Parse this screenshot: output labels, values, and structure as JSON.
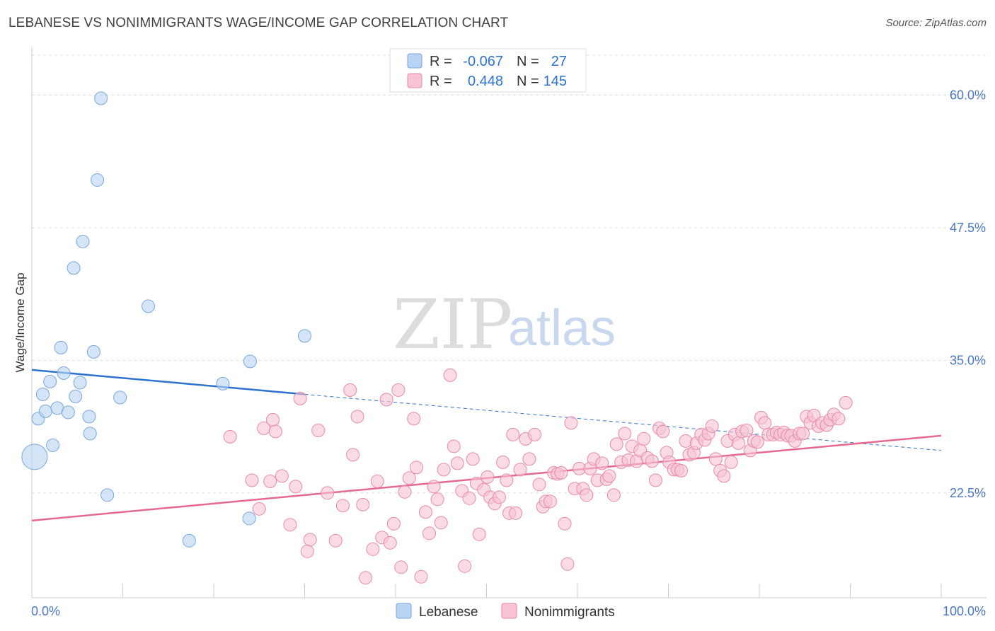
{
  "title": "LEBANESE VS NONIMMIGRANTS WAGE/INCOME GAP CORRELATION CHART",
  "source": "Source: ZipAtlas.com",
  "watermark": {
    "zip": "ZIP",
    "atlas": "atlas"
  },
  "colors": {
    "lebanese_fill": "#b9d3f3",
    "lebanese_stroke": "#7aa6dc",
    "lebanese_line": "#2e72cf",
    "nonimm_fill": "#f7c3d4",
    "nonimm_stroke": "#e88aa8",
    "nonimm_line": "#e5698f",
    "tick_text": "#4a78c4",
    "grid": "#dddddd"
  },
  "legend": {
    "rows": [
      {
        "r_label": "R =",
        "r_value": "-0.067",
        "n_label": "N =",
        "n_value": "27"
      },
      {
        "r_label": "R =",
        "r_value": "0.448",
        "n_label": "N =",
        "n_value": "145"
      }
    ]
  },
  "bottom_legend": [
    "Lebanese",
    "Nonimmigrants"
  ],
  "chart_data": {
    "type": "scatter",
    "title": "LEBANESE VS NONIMMIGRANTS WAGE/INCOME GAP CORRELATION CHART",
    "xlabel": "",
    "ylabel": "Wage/Income Gap",
    "xlim": [
      0,
      100
    ],
    "ylim": [
      12,
      63
    ],
    "x_tick_labels": [
      "0.0%",
      "100.0%"
    ],
    "y_ticks": [
      22.5,
      35.0,
      47.5,
      60.0
    ],
    "y_tick_labels": [
      "22.5%",
      "35.0%",
      "47.5%",
      "60.0%"
    ],
    "grid": "horizontal dashed",
    "legend_position": "top-center",
    "series": [
      {
        "name": "Lebanese",
        "R": -0.067,
        "N": 27,
        "trend": {
          "x": [
            0,
            30
          ],
          "y": [
            34.1,
            31.8
          ],
          "dashed_to": [
            100,
            26.5
          ]
        },
        "points": [
          {
            "x": 0.3,
            "y": 25.9,
            "big": true
          },
          {
            "x": 0.7,
            "y": 29.5
          },
          {
            "x": 1.2,
            "y": 31.8
          },
          {
            "x": 1.5,
            "y": 30.2
          },
          {
            "x": 2.0,
            "y": 33.0
          },
          {
            "x": 2.3,
            "y": 27.0
          },
          {
            "x": 2.8,
            "y": 30.5
          },
          {
            "x": 3.2,
            "y": 36.2
          },
          {
            "x": 3.5,
            "y": 33.8
          },
          {
            "x": 4.0,
            "y": 30.1
          },
          {
            "x": 4.6,
            "y": 43.7
          },
          {
            "x": 4.8,
            "y": 31.6
          },
          {
            "x": 5.3,
            "y": 32.9
          },
          {
            "x": 5.6,
            "y": 46.2
          },
          {
            "x": 6.3,
            "y": 29.7
          },
          {
            "x": 6.4,
            "y": 28.1
          },
          {
            "x": 6.8,
            "y": 35.8
          },
          {
            "x": 7.2,
            "y": 52.0
          },
          {
            "x": 7.6,
            "y": 59.7
          },
          {
            "x": 8.3,
            "y": 22.3
          },
          {
            "x": 9.7,
            "y": 31.5
          },
          {
            "x": 12.8,
            "y": 40.1
          },
          {
            "x": 17.3,
            "y": 18.0
          },
          {
            "x": 21.0,
            "y": 32.8
          },
          {
            "x": 23.9,
            "y": 20.1
          },
          {
            "x": 24.0,
            "y": 34.9
          },
          {
            "x": 30.0,
            "y": 37.3
          }
        ]
      },
      {
        "name": "Nonimmigrants",
        "R": 0.448,
        "N": 145,
        "trend": {
          "x": [
            0,
            100
          ],
          "y": [
            19.9,
            27.9
          ]
        },
        "points": [
          {
            "x": 21.8,
            "y": 27.8
          },
          {
            "x": 24.2,
            "y": 23.7
          },
          {
            "x": 25.0,
            "y": 21.0
          },
          {
            "x": 25.5,
            "y": 28.6
          },
          {
            "x": 26.2,
            "y": 23.6
          },
          {
            "x": 26.5,
            "y": 29.4
          },
          {
            "x": 26.8,
            "y": 28.3
          },
          {
            "x": 27.5,
            "y": 24.1
          },
          {
            "x": 28.4,
            "y": 19.5
          },
          {
            "x": 29.0,
            "y": 23.1
          },
          {
            "x": 29.5,
            "y": 31.4
          },
          {
            "x": 30.3,
            "y": 17.0
          },
          {
            "x": 30.6,
            "y": 18.1
          },
          {
            "x": 31.5,
            "y": 28.4
          },
          {
            "x": 32.5,
            "y": 22.5
          },
          {
            "x": 33.4,
            "y": 18.0
          },
          {
            "x": 34.2,
            "y": 21.3
          },
          {
            "x": 35.0,
            "y": 32.2
          },
          {
            "x": 35.3,
            "y": 26.1
          },
          {
            "x": 35.8,
            "y": 29.7
          },
          {
            "x": 36.4,
            "y": 21.4
          },
          {
            "x": 36.7,
            "y": 14.5
          },
          {
            "x": 37.5,
            "y": 17.2
          },
          {
            "x": 38.0,
            "y": 23.6
          },
          {
            "x": 38.5,
            "y": 18.3
          },
          {
            "x": 39.0,
            "y": 31.3
          },
          {
            "x": 39.4,
            "y": 17.8
          },
          {
            "x": 39.8,
            "y": 19.6
          },
          {
            "x": 40.3,
            "y": 32.2
          },
          {
            "x": 40.6,
            "y": 15.5
          },
          {
            "x": 41.0,
            "y": 22.6
          },
          {
            "x": 41.5,
            "y": 23.9
          },
          {
            "x": 42.0,
            "y": 29.5
          },
          {
            "x": 42.3,
            "y": 24.9
          },
          {
            "x": 42.8,
            "y": 14.6
          },
          {
            "x": 43.3,
            "y": 20.7
          },
          {
            "x": 43.7,
            "y": 18.7
          },
          {
            "x": 44.2,
            "y": 23.1
          },
          {
            "x": 44.6,
            "y": 21.9
          },
          {
            "x": 45.0,
            "y": 19.7
          },
          {
            "x": 45.3,
            "y": 24.7
          },
          {
            "x": 46.0,
            "y": 33.6
          },
          {
            "x": 46.4,
            "y": 26.9
          },
          {
            "x": 46.8,
            "y": 25.3
          },
          {
            "x": 47.3,
            "y": 22.7
          },
          {
            "x": 47.6,
            "y": 15.6
          },
          {
            "x": 48.1,
            "y": 22.0
          },
          {
            "x": 48.5,
            "y": 25.7
          },
          {
            "x": 48.9,
            "y": 23.4
          },
          {
            "x": 49.2,
            "y": 18.6
          },
          {
            "x": 49.7,
            "y": 22.8
          },
          {
            "x": 50.1,
            "y": 24.0
          },
          {
            "x": 50.4,
            "y": 22.1
          },
          {
            "x": 50.9,
            "y": 21.5
          },
          {
            "x": 51.4,
            "y": 22.1
          },
          {
            "x": 51.8,
            "y": 25.4
          },
          {
            "x": 52.2,
            "y": 23.7
          },
          {
            "x": 52.5,
            "y": 20.6
          },
          {
            "x": 52.9,
            "y": 28.0
          },
          {
            "x": 53.2,
            "y": 20.6
          },
          {
            "x": 53.7,
            "y": 24.7
          },
          {
            "x": 54.3,
            "y": 27.6
          },
          {
            "x": 54.7,
            "y": 25.7
          },
          {
            "x": 55.3,
            "y": 28.0
          },
          {
            "x": 55.8,
            "y": 23.3
          },
          {
            "x": 56.2,
            "y": 21.2
          },
          {
            "x": 56.5,
            "y": 21.7
          },
          {
            "x": 57.0,
            "y": 21.7
          },
          {
            "x": 57.4,
            "y": 24.4
          },
          {
            "x": 57.8,
            "y": 24.3
          },
          {
            "x": 58.2,
            "y": 24.4
          },
          {
            "x": 58.6,
            "y": 19.6
          },
          {
            "x": 58.9,
            "y": 15.8
          },
          {
            "x": 59.3,
            "y": 29.1
          },
          {
            "x": 59.7,
            "y": 22.9
          },
          {
            "x": 60.2,
            "y": 24.8
          },
          {
            "x": 60.6,
            "y": 22.9
          },
          {
            "x": 61.0,
            "y": 22.3
          },
          {
            "x": 61.4,
            "y": 24.8
          },
          {
            "x": 61.8,
            "y": 25.7
          },
          {
            "x": 62.2,
            "y": 23.7
          },
          {
            "x": 62.7,
            "y": 25.3
          },
          {
            "x": 63.2,
            "y": 23.8
          },
          {
            "x": 63.5,
            "y": 24.1
          },
          {
            "x": 64.0,
            "y": 22.3
          },
          {
            "x": 64.3,
            "y": 27.1
          },
          {
            "x": 64.8,
            "y": 25.4
          },
          {
            "x": 65.2,
            "y": 28.1
          },
          {
            "x": 65.6,
            "y": 25.6
          },
          {
            "x": 66.0,
            "y": 26.9
          },
          {
            "x": 66.5,
            "y": 25.5
          },
          {
            "x": 66.9,
            "y": 26.5
          },
          {
            "x": 67.3,
            "y": 27.6
          },
          {
            "x": 67.7,
            "y": 25.8
          },
          {
            "x": 68.2,
            "y": 25.5
          },
          {
            "x": 68.6,
            "y": 23.7
          },
          {
            "x": 69.0,
            "y": 28.6
          },
          {
            "x": 69.4,
            "y": 28.3
          },
          {
            "x": 69.8,
            "y": 26.3
          },
          {
            "x": 70.1,
            "y": 25.4
          },
          {
            "x": 70.6,
            "y": 24.7
          },
          {
            "x": 71.0,
            "y": 24.7
          },
          {
            "x": 71.4,
            "y": 24.6
          },
          {
            "x": 71.9,
            "y": 27.4
          },
          {
            "x": 72.3,
            "y": 26.1
          },
          {
            "x": 72.8,
            "y": 26.3
          },
          {
            "x": 73.1,
            "y": 27.2
          },
          {
            "x": 73.6,
            "y": 28.0
          },
          {
            "x": 74.0,
            "y": 27.5
          },
          {
            "x": 74.4,
            "y": 28.1
          },
          {
            "x": 74.8,
            "y": 28.8
          },
          {
            "x": 75.2,
            "y": 25.7
          },
          {
            "x": 75.7,
            "y": 24.6
          },
          {
            "x": 76.1,
            "y": 24.1
          },
          {
            "x": 76.5,
            "y": 27.4
          },
          {
            "x": 76.9,
            "y": 25.4
          },
          {
            "x": 77.3,
            "y": 28.0
          },
          {
            "x": 77.7,
            "y": 27.2
          },
          {
            "x": 78.1,
            "y": 28.3
          },
          {
            "x": 78.6,
            "y": 28.4
          },
          {
            "x": 79.0,
            "y": 26.5
          },
          {
            "x": 79.4,
            "y": 27.4
          },
          {
            "x": 79.8,
            "y": 27.3
          },
          {
            "x": 80.2,
            "y": 29.6
          },
          {
            "x": 80.6,
            "y": 29.1
          },
          {
            "x": 81.0,
            "y": 28.0
          },
          {
            "x": 81.5,
            "y": 28.0
          },
          {
            "x": 81.9,
            "y": 28.2
          },
          {
            "x": 82.3,
            "y": 28.0
          },
          {
            "x": 82.7,
            "y": 28.2
          },
          {
            "x": 83.1,
            "y": 27.9
          },
          {
            "x": 83.5,
            "y": 27.9
          },
          {
            "x": 83.9,
            "y": 27.4
          },
          {
            "x": 84.4,
            "y": 28.1
          },
          {
            "x": 84.8,
            "y": 28.1
          },
          {
            "x": 85.2,
            "y": 29.7
          },
          {
            "x": 85.6,
            "y": 29.1
          },
          {
            "x": 86.0,
            "y": 29.8
          },
          {
            "x": 86.5,
            "y": 28.8
          },
          {
            "x": 86.9,
            "y": 29.1
          },
          {
            "x": 87.4,
            "y": 28.9
          },
          {
            "x": 87.8,
            "y": 29.4
          },
          {
            "x": 88.2,
            "y": 29.9
          },
          {
            "x": 88.7,
            "y": 29.5
          },
          {
            "x": 89.5,
            "y": 31.0
          }
        ]
      }
    ]
  }
}
